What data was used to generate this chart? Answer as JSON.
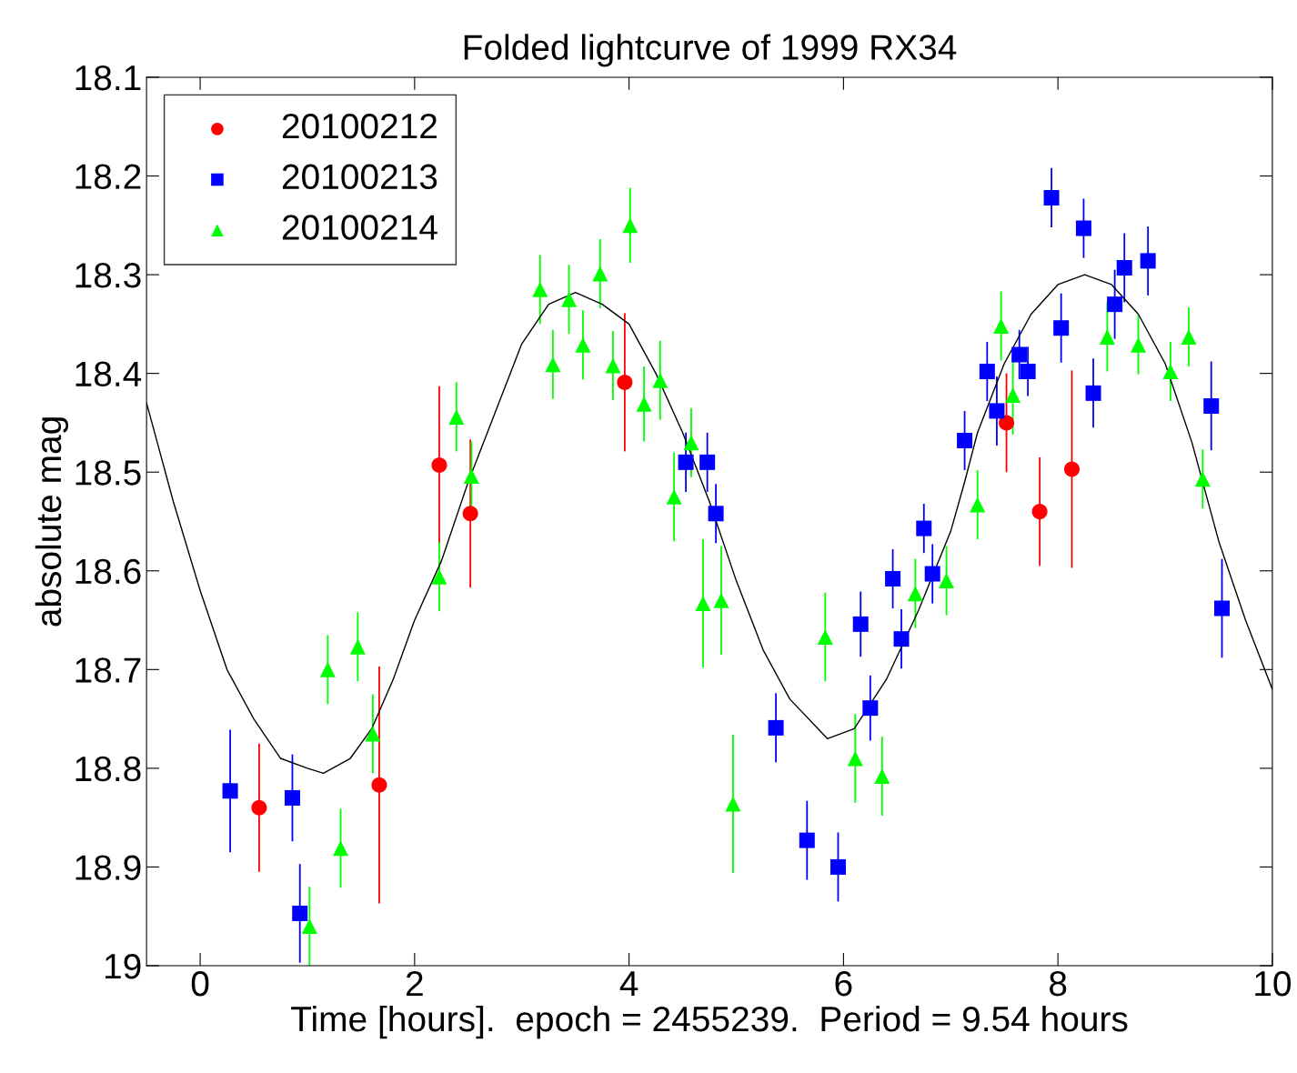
{
  "chart_data": {
    "type": "scatter",
    "title": "Folded lightcurve of 1999 RX34",
    "xlabel": "Time [hours].  epoch = 2455239.  Period = 9.54 hours",
    "ylabel": "absolute mag",
    "xlim": [
      -0.5,
      10
    ],
    "xticks": [
      0,
      2,
      4,
      6,
      8,
      10
    ],
    "ylim": [
      19,
      18.1
    ],
    "yticks": [
      18.1,
      18.2,
      18.3,
      18.4,
      18.5,
      18.6,
      18.7,
      18.8,
      18.9,
      {
        "value": 19,
        "label": "19"
      }
    ],
    "grid": false,
    "legend": "top left",
    "series": [
      {
        "name": "20100212",
        "color": "#ff0000",
        "marker": "circle",
        "x": [
          0.55,
          1.67,
          2.23,
          2.52,
          3.96,
          7.52,
          7.83,
          8.13
        ],
        "values": [
          18.84,
          18.817,
          18.493,
          18.542,
          18.409,
          18.45,
          18.54,
          18.497
        ],
        "errors": [
          0.065,
          0.12,
          0.08,
          0.075,
          0.07,
          0.05,
          0.055,
          0.1
        ]
      },
      {
        "name": "20100213",
        "color": "#0000ff",
        "marker": "square",
        "x": [
          0.28,
          0.86,
          0.93,
          4.53,
          4.73,
          4.81,
          5.37,
          5.66,
          5.95,
          6.16,
          6.25,
          6.46,
          6.54,
          6.75,
          6.83,
          7.13,
          7.34,
          7.43,
          7.64,
          7.72,
          7.94,
          8.03,
          8.24,
          8.33,
          8.53,
          8.62,
          8.84,
          9.43,
          9.53
        ],
        "values": [
          18.823,
          18.83,
          18.947,
          18.49,
          18.49,
          18.542,
          18.759,
          18.873,
          18.9,
          18.654,
          18.739,
          18.608,
          18.669,
          18.557,
          18.603,
          18.468,
          18.398,
          18.438,
          18.381,
          18.398,
          18.222,
          18.354,
          18.253,
          18.42,
          18.33,
          18.293,
          18.286,
          18.433,
          18.638
        ],
        "errors": [
          0.062,
          0.044,
          0.05,
          0.03,
          0.03,
          0.03,
          0.035,
          0.04,
          0.035,
          0.033,
          0.033,
          0.03,
          0.03,
          0.025,
          0.03,
          0.03,
          0.03,
          0.035,
          0.025,
          0.025,
          0.03,
          0.035,
          0.03,
          0.035,
          0.035,
          0.035,
          0.035,
          0.045,
          0.05
        ]
      },
      {
        "name": "20100214",
        "color": "#00ff00",
        "marker": "triangle",
        "x": [
          1.02,
          1.19,
          1.31,
          1.47,
          1.61,
          2.23,
          2.39,
          2.53,
          3.17,
          3.29,
          3.44,
          3.57,
          3.73,
          3.85,
          4.01,
          4.14,
          4.29,
          4.42,
          4.58,
          4.69,
          4.86,
          4.97,
          5.83,
          6.11,
          6.36,
          6.67,
          6.96,
          7.25,
          7.47,
          7.58,
          8.46,
          8.75,
          9.05,
          9.22,
          9.35
        ],
        "values": [
          18.96,
          18.7,
          18.881,
          18.677,
          18.765,
          18.606,
          18.444,
          18.504,
          18.315,
          18.391,
          18.325,
          18.371,
          18.299,
          18.392,
          18.25,
          18.431,
          18.407,
          18.525,
          18.47,
          18.633,
          18.63,
          18.836,
          18.667,
          18.79,
          18.808,
          18.623,
          18.61,
          18.533,
          18.352,
          18.422,
          18.363,
          18.371,
          18.398,
          18.363,
          18.507
        ],
        "errors": [
          0.04,
          0.035,
          0.04,
          0.035,
          0.04,
          0.035,
          0.035,
          0.035,
          0.035,
          0.035,
          0.035,
          0.035,
          0.035,
          0.035,
          0.038,
          0.038,
          0.04,
          0.045,
          0.035,
          0.065,
          0.055,
          0.07,
          0.045,
          0.045,
          0.04,
          0.035,
          0.035,
          0.035,
          0.035,
          0.04,
          0.035,
          0.03,
          0.03,
          0.03,
          0.03
        ]
      },
      {
        "color": "#000000",
        "type": "line",
        "marker": "none",
        "line_style": "solid",
        "x": [
          -0.5,
          -0.25,
          0,
          0.25,
          0.5,
          0.75,
          1.0,
          1.15,
          1.4,
          1.6,
          1.8,
          2.0,
          2.25,
          2.5,
          2.75,
          3.0,
          3.25,
          3.5,
          3.75,
          4.0,
          4.25,
          4.5,
          4.75,
          5.0,
          5.25,
          5.5,
          5.85,
          6.1,
          6.4,
          6.7,
          7.0,
          7.13,
          7.25,
          7.5,
          7.75,
          8.0,
          8.25,
          8.5,
          8.75,
          9.0,
          9.25,
          9.5,
          9.75,
          10
        ],
        "values": [
          18.43,
          18.53,
          18.62,
          18.7,
          18.75,
          18.79,
          18.8,
          18.805,
          18.79,
          18.76,
          18.71,
          18.65,
          18.59,
          18.51,
          18.44,
          18.37,
          18.33,
          18.318,
          18.33,
          18.35,
          18.4,
          18.46,
          18.53,
          18.61,
          18.68,
          18.73,
          18.77,
          18.76,
          18.71,
          18.64,
          18.56,
          18.51,
          18.46,
          18.39,
          18.34,
          18.31,
          18.3,
          18.31,
          18.34,
          18.39,
          18.47,
          18.57,
          18.65,
          18.72
        ]
      }
    ]
  }
}
